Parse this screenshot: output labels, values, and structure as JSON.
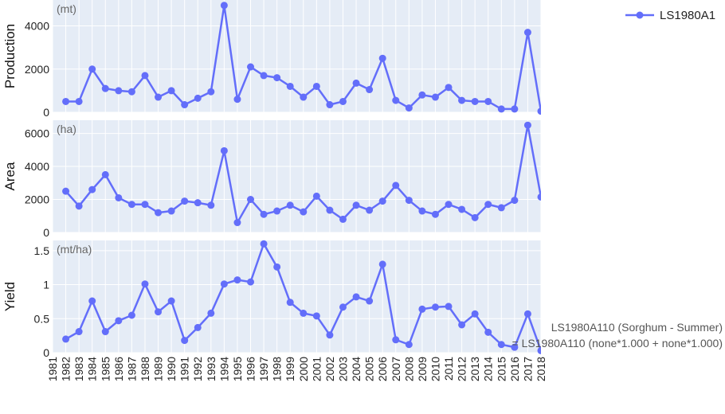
{
  "chart_data": {
    "type": "line",
    "legend": {
      "label": "LS1980A1",
      "position": "top-right"
    },
    "line_color": "#636efa",
    "panel_bg": "#e5ecf6",
    "grid": true,
    "annotation": {
      "line1": "LS1980A110 (Sorghum - Summer)",
      "line2": "= LS1980A110 (none*1.000 + none*1.000)"
    },
    "x_tick_labels": [
      "1981",
      "1982",
      "1983",
      "1984",
      "1985",
      "1986",
      "1987",
      "1988",
      "1989",
      "1990",
      "1991",
      "1992",
      "1993",
      "1994",
      "1995",
      "1996",
      "1997",
      "1998",
      "1999",
      "2000",
      "2001",
      "2002",
      "2003",
      "2004",
      "2005",
      "2006",
      "2007",
      "2008",
      "2009",
      "2010",
      "2011",
      "2012",
      "2013",
      "2014",
      "2015",
      "2016",
      "2017",
      "2018"
    ],
    "x": [
      1982,
      1983,
      1984,
      1985,
      1986,
      1987,
      1988,
      1989,
      1990,
      1991,
      1992,
      1993,
      1994,
      1995,
      1996,
      1997,
      1998,
      1999,
      2000,
      2001,
      2002,
      2003,
      2004,
      2005,
      2006,
      2007,
      2008,
      2009,
      2010,
      2011,
      2012,
      2013,
      2014,
      2015,
      2016,
      2017,
      2018
    ],
    "xlim": [
      1981,
      2018
    ],
    "panels": [
      {
        "ylabel": "Production",
        "unit": "(mt)",
        "ylim": [
          0,
          5200
        ],
        "yticks": [
          0,
          2000,
          4000
        ],
        "ytick_labels": [
          "0",
          "2000",
          "4000"
        ],
        "values": [
          500,
          500,
          2000,
          1100,
          1000,
          950,
          1700,
          700,
          1000,
          350,
          650,
          950,
          4950,
          600,
          2100,
          1700,
          1600,
          1200,
          700,
          1200,
          350,
          500,
          1350,
          1050,
          2500,
          550,
          200,
          800,
          700,
          1150,
          550,
          500,
          500,
          150,
          150,
          3700,
          50
        ]
      },
      {
        "ylabel": "Area",
        "unit": "(ha)",
        "ylim": [
          0,
          6800
        ],
        "yticks": [
          0,
          2000,
          4000,
          6000
        ],
        "ytick_labels": [
          "0",
          "2000",
          "4000",
          "6000"
        ],
        "values": [
          2500,
          1600,
          2600,
          3500,
          2100,
          1700,
          1700,
          1200,
          1300,
          1900,
          1800,
          1650,
          4950,
          600,
          2000,
          1100,
          1300,
          1650,
          1250,
          2200,
          1350,
          800,
          1650,
          1350,
          1900,
          2850,
          1950,
          1300,
          1100,
          1700,
          1400,
          900,
          1700,
          1500,
          1950,
          6500,
          2150
        ]
      },
      {
        "ylabel": "Yield",
        "unit": "(mt/ha)",
        "ylim": [
          0,
          1.65
        ],
        "yticks": [
          0,
          0.5,
          1,
          1.5
        ],
        "ytick_labels": [
          "0",
          "0.5",
          "1",
          "1.5"
        ],
        "values": [
          0.2,
          0.31,
          0.76,
          0.31,
          0.47,
          0.55,
          1.01,
          0.6,
          0.76,
          0.18,
          0.37,
          0.58,
          1.01,
          1.07,
          1.04,
          1.6,
          1.26,
          0.74,
          0.58,
          0.54,
          0.26,
          0.67,
          0.82,
          0.76,
          1.3,
          0.19,
          0.12,
          0.64,
          0.67,
          0.68,
          0.41,
          0.57,
          0.3,
          0.12,
          0.08,
          0.57,
          0.03
        ]
      }
    ]
  }
}
